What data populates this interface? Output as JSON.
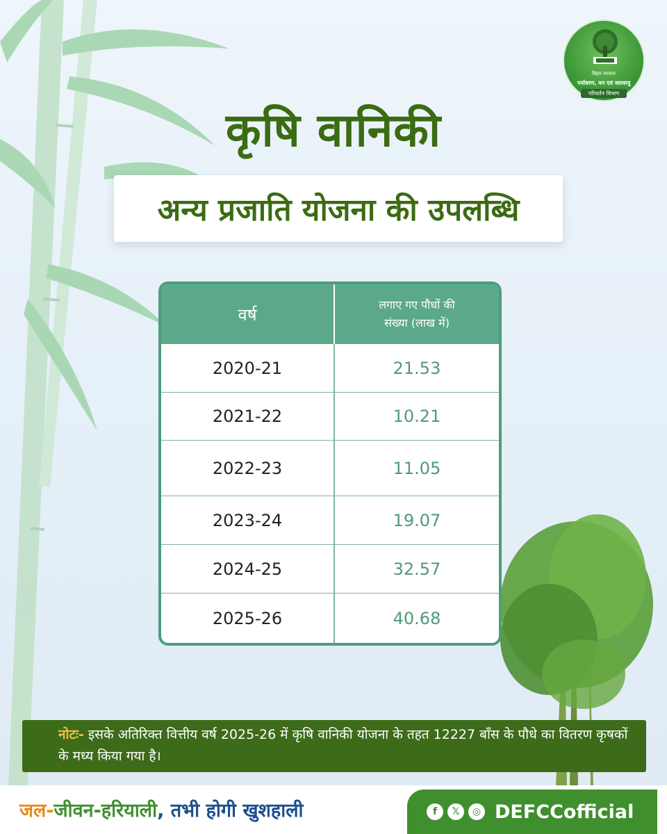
{
  "logo": {
    "top_text": "बिहार सरकार",
    "dept_line1": "पर्यावरण, वन एवं जलवायु",
    "dept_line2": "परिवर्तन विभाग"
  },
  "title": "कृषि वानिकी",
  "subtitle": "अन्य प्रजाति योजना की उपलब्धि",
  "table": {
    "headers": {
      "year": "वर्ष",
      "plants_line1": "लगाए गए पौधों की",
      "plants_line2": "संख्या (लाख में)"
    },
    "rows": [
      {
        "year": "2020-21",
        "value": "21.53"
      },
      {
        "year": "2021-22",
        "value": "10.21"
      },
      {
        "year": "2022-23",
        "value": "11.05"
      },
      {
        "year": "2023-24",
        "value": "19.07"
      },
      {
        "year": "2024-25",
        "value": "32.57"
      },
      {
        "year": "2025-26",
        "value": "40.68"
      }
    ]
  },
  "note": {
    "label": "नोटः-",
    "text": "इसके अतिरिक्त वित्तीय वर्ष 2025-26 में कृषि वानिकी योजना के तहत 12227 बाँस के पौधे का वितरण कृषकों के मध्य किया गया है।"
  },
  "footer": {
    "slogan_part1": "जल-",
    "slogan_part2": "जीवन-",
    "slogan_part3": "हरियाली",
    "slogan_part4": ", तभी होगी खुशहाली",
    "icons": [
      "facebook-icon",
      "x-icon",
      "instagram-icon"
    ],
    "icon_glyphs": [
      "f",
      "𝕏",
      "◎"
    ],
    "handle": "DEFCCofficial"
  },
  "colors": {
    "title_green": "#3b6b12",
    "table_header": "#5ba88a",
    "note_bg": "#3d6b1a",
    "note_label": "#f2c13a"
  }
}
